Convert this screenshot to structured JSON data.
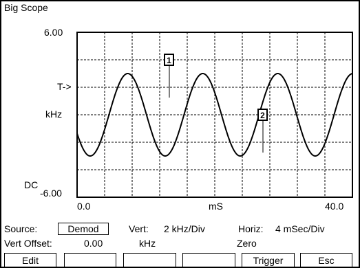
{
  "window": {
    "title": "Big Scope"
  },
  "scope": {
    "y_top_label": "6.00",
    "y_bottom_label": "-6.00",
    "trigger_label": "T->",
    "units_label": "kHz",
    "coupling_label": "DC",
    "x_start_label": "0.0",
    "x_mid_label": "mS",
    "x_end_label": "40.0",
    "cursor1_label": "1",
    "cursor2_label": "2"
  },
  "chart_data": {
    "type": "line",
    "title": "",
    "xlabel": "mS",
    "ylabel": "kHz",
    "xlim": [
      0.0,
      40.0
    ],
    "ylim": [
      -6.0,
      6.0
    ],
    "grid": true,
    "series": [
      {
        "waveform": "sine",
        "amplitude": 3.0,
        "offset": 0.0,
        "period_ms": 10.9,
        "phase_deg": 207,
        "color": "#000000"
      }
    ]
  },
  "settings": {
    "source_label": "Source:",
    "source_value": "Demod",
    "vert_label": "Vert:",
    "vert_value": "2 kHz/Div",
    "horiz_label": "Horiz:",
    "horiz_value": "4 mSec/Div",
    "vert_offset_label": "Vert Offset:",
    "vert_offset_value": "0.00",
    "vert_offset_unit": "kHz",
    "zero_label": "Zero"
  },
  "softkeys": [
    "Edit",
    "",
    "",
    "",
    "Trigger",
    "Esc"
  ],
  "colors": {
    "background": "#ffffff",
    "foreground": "#000000"
  }
}
